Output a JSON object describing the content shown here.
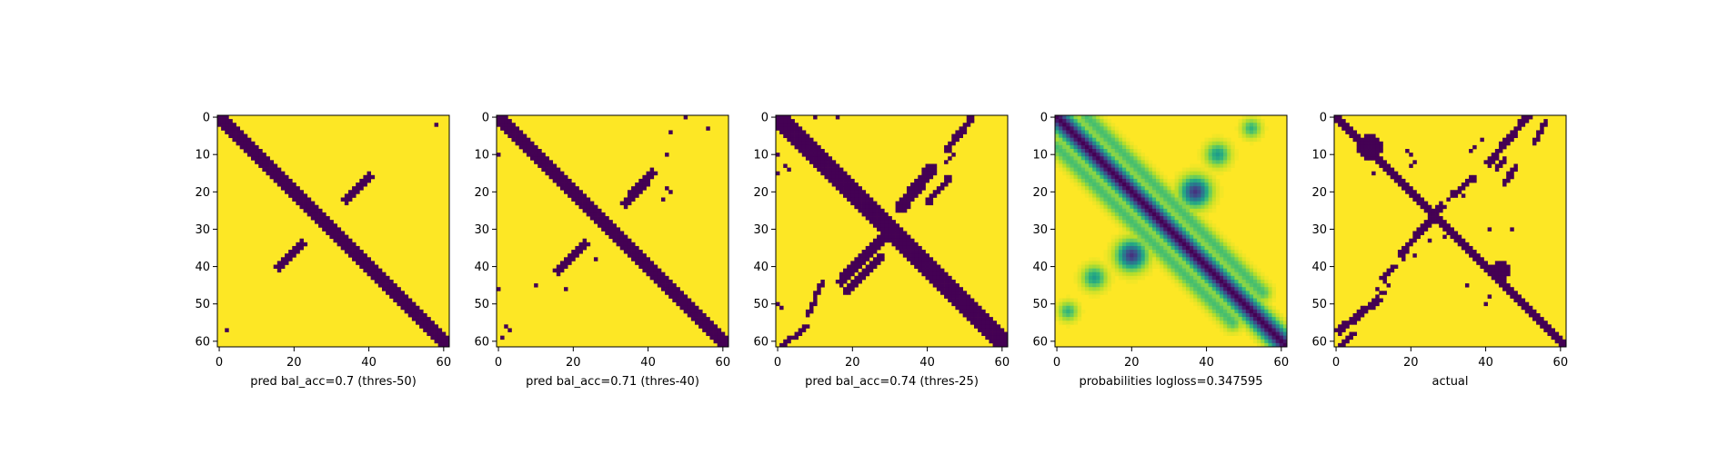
{
  "colors": {
    "background": "#ffffff",
    "colormap_viridis": [
      "#440154",
      "#482878",
      "#3e4989",
      "#31688e",
      "#26828e",
      "#1f9e89",
      "#35b779",
      "#6ece58",
      "#b5de2b",
      "#fde725"
    ]
  },
  "chart_data": [
    {
      "type": "heatmap",
      "title": "",
      "xlabel": "pred bal_acc=0.7 (thres-50)",
      "ylabel": "",
      "xlim": [
        0,
        61
      ],
      "ylim": [
        61,
        0
      ],
      "x_ticks": [
        0,
        20,
        40,
        60
      ],
      "y_ticks": [
        0,
        10,
        20,
        30,
        40,
        50,
        60
      ],
      "matrix_size": 62,
      "value_range": [
        0,
        1
      ],
      "colormap": "viridis",
      "cells_zero": {
        "diagonal_bands": [
          {
            "from": [
              0,
              0
            ],
            "to": [
              61,
              61
            ],
            "halfwidth": 1.6
          }
        ],
        "anti_diagonal_segments": [
          {
            "from": [
              40,
              16
            ],
            "to": [
              34,
              22
            ],
            "halfwidth": 1.2
          },
          {
            "from": [
              22,
              34
            ],
            "to": [
              16,
              40
            ],
            "halfwidth": 1.2
          }
        ],
        "points": [
          [
            58,
            2
          ],
          [
            2,
            57
          ]
        ]
      }
    },
    {
      "type": "heatmap",
      "title": "",
      "xlabel": "pred bal_acc=0.71 (thres-40)",
      "ylabel": "",
      "xlim": [
        0,
        61
      ],
      "ylim": [
        61,
        0
      ],
      "x_ticks": [
        0,
        20,
        40,
        60
      ],
      "y_ticks": [
        0,
        10,
        20,
        30,
        40,
        50,
        60
      ],
      "matrix_size": 62,
      "value_range": [
        0,
        1
      ],
      "colormap": "viridis",
      "cells_zero": {
        "diagonal_bands": [
          {
            "from": [
              0,
              0
            ],
            "to": [
              61,
              61
            ],
            "halfwidth": 1.7
          }
        ],
        "anti_diagonal_segments": [
          {
            "from": [
              41,
              15
            ],
            "to": [
              34,
              23
            ],
            "halfwidth": 1.3
          },
          {
            "from": [
              23,
              34
            ],
            "to": [
              16,
              41
            ],
            "halfwidth": 1.3
          }
        ],
        "points": [
          [
            50,
            0
          ],
          [
            56,
            3
          ],
          [
            46,
            4
          ],
          [
            45,
            10
          ],
          [
            0,
            10
          ],
          [
            45,
            19
          ],
          [
            46,
            20
          ],
          [
            44,
            22
          ],
          [
            26,
            38
          ],
          [
            0,
            46
          ],
          [
            10,
            45
          ],
          [
            18,
            46
          ],
          [
            2,
            56
          ],
          [
            3,
            57
          ],
          [
            1,
            59
          ]
        ]
      }
    },
    {
      "type": "heatmap",
      "title": "",
      "xlabel": "pred bal_acc=0.74 (thres-25)",
      "ylabel": "",
      "xlim": [
        0,
        61
      ],
      "ylim": [
        61,
        0
      ],
      "x_ticks": [
        0,
        20,
        40,
        60
      ],
      "y_ticks": [
        0,
        10,
        20,
        30,
        40,
        50,
        60
      ],
      "matrix_size": 62,
      "value_range": [
        0,
        1
      ],
      "colormap": "viridis",
      "cells_zero": {
        "diagonal_bands": [
          {
            "from": [
              0,
              0
            ],
            "to": [
              61,
              61
            ],
            "halfwidth": 2.3
          }
        ],
        "anti_diagonal_segments": [
          {
            "from": [
              52,
              0
            ],
            "to": [
              45,
              9
            ],
            "halfwidth": 0.9
          },
          {
            "from": [
              47,
              10
            ],
            "to": [
              45,
              12
            ],
            "halfwidth": 0.7
          },
          {
            "from": [
              41,
              14
            ],
            "to": [
              33,
              24
            ],
            "halfwidth": 1.6
          },
          {
            "from": [
              46,
              16
            ],
            "to": [
              40,
              23
            ],
            "halfwidth": 0.8
          },
          {
            "from": [
              29,
              31
            ],
            "to": [
              17,
              44
            ],
            "halfwidth": 1.4
          },
          {
            "from": [
              28,
              37
            ],
            "to": [
              18,
              47
            ],
            "halfwidth": 0.8
          },
          {
            "from": [
              12,
              44
            ],
            "to": [
              8,
              53
            ],
            "halfwidth": 0.7
          },
          {
            "from": [
              8,
              56
            ],
            "to": [
              0,
              62
            ],
            "halfwidth": 0.7
          }
        ],
        "points": [
          [
            10,
            0
          ],
          [
            16,
            0
          ],
          [
            0,
            10
          ],
          [
            2,
            13
          ],
          [
            3,
            14
          ],
          [
            0,
            15
          ],
          [
            0,
            50
          ],
          [
            1,
            51
          ],
          [
            2,
            60
          ]
        ]
      }
    },
    {
      "type": "heatmap",
      "title": "",
      "xlabel": "probabilities logloss=0.347595",
      "ylabel": "",
      "xlim": [
        0,
        61
      ],
      "ylim": [
        61,
        0
      ],
      "x_ticks": [
        0,
        20,
        40,
        60
      ],
      "y_ticks": [
        0,
        10,
        20,
        30,
        40,
        50,
        60
      ],
      "matrix_size": 62,
      "value_range": [
        0,
        1
      ],
      "colormap": "viridis",
      "continuous": true,
      "features": {
        "main_diagonal": {
          "peak": 1.0,
          "width": 1.9
        },
        "anti_diagonal_blobs": [
          {
            "center": [
              37,
              20
            ],
            "peak": 0.85,
            "width": 2.5
          },
          {
            "center": [
              20,
              37
            ],
            "peak": 0.85,
            "width": 2.5
          },
          {
            "center": [
              43,
              10
            ],
            "peak": 0.45,
            "width": 2.0
          },
          {
            "center": [
              10,
              43
            ],
            "peak": 0.45,
            "width": 2.0
          },
          {
            "center": [
              52,
              3
            ],
            "peak": 0.35,
            "width": 1.6
          },
          {
            "center": [
              3,
              52
            ],
            "peak": 0.35,
            "width": 1.6
          }
        ],
        "side_streaks": [
          {
            "from": [
              8,
              0
            ],
            "to": [
              55,
              47
            ],
            "peak": 0.3,
            "width": 1.5
          },
          {
            "from": [
              0,
              8
            ],
            "to": [
              47,
              55
            ],
            "peak": 0.3,
            "width": 1.5
          }
        ]
      }
    },
    {
      "type": "heatmap",
      "title": "",
      "xlabel": "actual",
      "ylabel": "",
      "xlim": [
        0,
        61
      ],
      "ylim": [
        61,
        0
      ],
      "x_ticks": [
        0,
        20,
        40,
        60
      ],
      "y_ticks": [
        0,
        10,
        20,
        30,
        40,
        50,
        60
      ],
      "matrix_size": 62,
      "value_range": [
        0,
        1
      ],
      "colormap": "viridis",
      "cells_zero": {
        "diagonal_bands": [
          {
            "from": [
              0,
              0
            ],
            "to": [
              61,
              61
            ],
            "halfwidth": 1.4
          }
        ],
        "anti_diagonal_segments": [
          {
            "from": [
              51,
              0
            ],
            "to": [
              41,
              12
            ],
            "halfwidth": 1.0
          },
          {
            "from": [
              56,
              1
            ],
            "to": [
              53,
              7
            ],
            "halfwidth": 0.7
          },
          {
            "from": [
              45,
              11
            ],
            "to": [
              43,
              14
            ],
            "halfwidth": 0.7
          },
          {
            "from": [
              48,
              13
            ],
            "to": [
              45,
              18
            ],
            "halfwidth": 0.8
          },
          {
            "from": [
              37,
              16
            ],
            "to": [
              31,
              21
            ],
            "halfwidth": 0.8
          },
          {
            "from": [
              28,
              24
            ],
            "to": [
              24,
              29
            ],
            "halfwidth": 1.1
          },
          {
            "from": [
              23,
              30
            ],
            "to": [
              17,
              37
            ],
            "halfwidth": 0.9
          },
          {
            "from": [
              16,
              40
            ],
            "to": [
              12,
              43
            ],
            "halfwidth": 0.7
          },
          {
            "from": [
              11,
              49
            ],
            "to": [
              1,
              57
            ],
            "halfwidth": 1.0
          },
          {
            "from": [
              5,
              58
            ],
            "to": [
              1,
              61
            ],
            "halfwidth": 0.6
          }
        ],
        "blobs": [
          {
            "center": [
              9,
              8
            ],
            "radius": 3.2
          },
          {
            "center": [
              44,
              41
            ],
            "radius": 2.4
          }
        ],
        "points": [
          [
            19,
            9
          ],
          [
            20,
            10
          ],
          [
            20,
            13
          ],
          [
            21,
            12
          ],
          [
            13,
            13
          ],
          [
            10,
            15
          ],
          [
            36,
            9
          ],
          [
            37,
            8
          ],
          [
            39,
            6
          ],
          [
            47,
            30
          ],
          [
            41,
            30
          ],
          [
            34,
            21
          ],
          [
            30,
            22
          ],
          [
            18,
            38
          ],
          [
            21,
            37
          ],
          [
            13,
            44
          ],
          [
            12,
            47
          ],
          [
            13,
            47
          ],
          [
            14,
            45
          ],
          [
            11,
            46
          ],
          [
            25,
            33
          ],
          [
            29,
            32
          ],
          [
            35,
            45
          ],
          [
            41,
            48
          ],
          [
            40,
            50
          ],
          [
            5,
            55
          ]
        ]
      }
    }
  ]
}
